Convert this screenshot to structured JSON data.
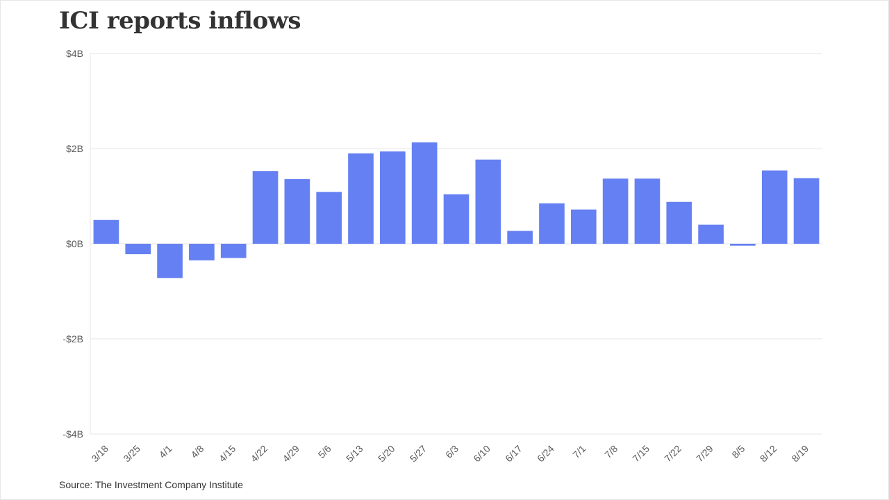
{
  "title": "ICI reports inflows",
  "source": "Source: The Investment Company Institute",
  "colors": {
    "bar": "#6580f2",
    "grid": "#e6e6e6",
    "text": "#333333",
    "axis": "#595959"
  },
  "chart_data": {
    "type": "bar",
    "title": "ICI reports inflows",
    "xlabel": "",
    "ylabel": "",
    "categories": [
      "3/18",
      "3/25",
      "4/1",
      "4/8",
      "4/15",
      "4/22",
      "4/29",
      "5/6",
      "5/13",
      "5/20",
      "5/27",
      "6/3",
      "6/10",
      "6/17",
      "6/24",
      "7/1",
      "7/8",
      "7/15",
      "7/22",
      "7/29",
      "8/5",
      "8/12",
      "8/19"
    ],
    "values": [
      0.5,
      -0.22,
      -0.72,
      -0.35,
      -0.3,
      1.53,
      1.36,
      1.09,
      1.9,
      1.94,
      2.13,
      1.04,
      1.77,
      0.27,
      0.85,
      0.72,
      1.37,
      1.37,
      0.88,
      0.4,
      -0.04,
      1.54,
      1.38
    ],
    "yticks": [
      4,
      2,
      0,
      -2,
      -4
    ],
    "ytick_labels": [
      "$4B",
      "$2B",
      "$0B",
      "-$2B",
      "-$4B"
    ],
    "ylim": [
      -4,
      4
    ],
    "unit": "billions USD",
    "grid": true,
    "legend": "none"
  }
}
